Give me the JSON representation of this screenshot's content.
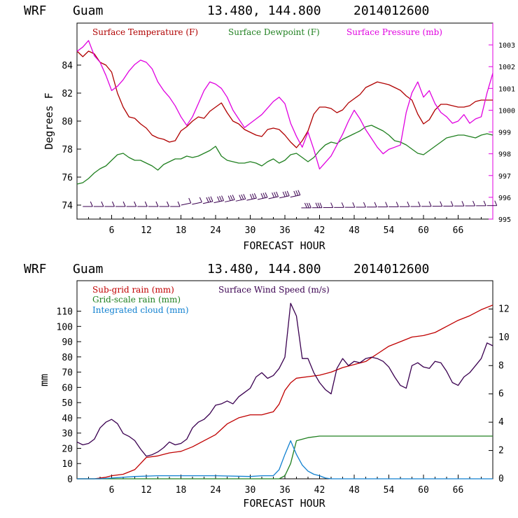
{
  "header": {
    "model": "WRF",
    "station": "Guam",
    "coords": "13.480, 144.800",
    "init": "2014012600"
  },
  "colors": {
    "temperature": "#b00000",
    "dewpoint": "#208020",
    "pressure": "#e000e0",
    "wind": "#3a0050",
    "subgrid": "#c00000",
    "gridscale": "#208020",
    "cloud": "#1080d0"
  },
  "chart_data": [
    {
      "type": "line",
      "title": "WRF Guam 13.480, 144.800 2014012600",
      "xlabel": "FORECAST HOUR",
      "ylabel": "Degrees F",
      "xlim": [
        0,
        72
      ],
      "ylim": [
        73,
        87
      ],
      "y2lim": [
        995,
        1004
      ],
      "xticks": [
        6,
        12,
        18,
        24,
        30,
        36,
        42,
        48,
        54,
        60,
        66
      ],
      "xtick_labels": [
        "6",
        "12",
        "18",
        "24",
        "30",
        "36",
        "42",
        "48",
        "54",
        "60",
        "66"
      ],
      "yticks": [
        74,
        76,
        78,
        80,
        82,
        84
      ],
      "ytick_labels": [
        "74",
        "76",
        "78",
        "80",
        "82",
        "84"
      ],
      "y2ticks": [
        995,
        996,
        997,
        998,
        999,
        1000,
        1001,
        1002,
        1003
      ],
      "y2tick_labels": [
        "995",
        "996",
        "997",
        "998",
        "999",
        "1000",
        "1001",
        "1002",
        "1003"
      ],
      "legend": [
        "Surface Temperature (F)",
        "Surface Dewpoint (F)",
        "Surface Pressure (mb)"
      ],
      "series": [
        {
          "name": "Surface Temperature (F)",
          "axis": "left",
          "x": [
            0,
            1,
            2,
            3,
            4,
            5,
            6,
            7,
            8,
            9,
            10,
            11,
            12,
            13,
            14,
            15,
            16,
            17,
            18,
            19,
            20,
            21,
            22,
            23,
            24,
            25,
            26,
            27,
            28,
            29,
            30,
            31,
            32,
            33,
            34,
            35,
            36,
            37,
            38,
            39,
            40,
            41,
            42,
            43,
            44,
            45,
            46,
            47,
            48,
            49,
            50,
            51,
            52,
            53,
            54,
            55,
            56,
            57,
            58,
            59,
            60,
            61,
            62,
            63,
            64,
            65,
            66,
            67,
            68,
            69,
            70,
            71,
            72
          ],
          "values": [
            85.0,
            84.6,
            85.0,
            84.8,
            84.2,
            84.0,
            83.5,
            82.0,
            81.0,
            80.3,
            80.2,
            79.8,
            79.5,
            79.0,
            78.8,
            78.7,
            78.5,
            78.6,
            79.3,
            79.6,
            80.0,
            80.3,
            80.2,
            80.7,
            81.0,
            81.3,
            80.6,
            80.0,
            79.8,
            79.4,
            79.2,
            79.0,
            78.9,
            79.4,
            79.5,
            79.4,
            79.0,
            78.5,
            78.1,
            78.6,
            79.3,
            80.5,
            81.0,
            81.0,
            80.9,
            80.6,
            80.8,
            81.3,
            81.6,
            81.9,
            82.4,
            82.6,
            82.8,
            82.7,
            82.6,
            82.4,
            82.2,
            81.8,
            81.5,
            80.5,
            79.8,
            80.1,
            80.8,
            81.2,
            81.2,
            81.1,
            81.0,
            81.0,
            81.1,
            81.4,
            81.5,
            81.5,
            81.5
          ]
        },
        {
          "name": "Surface Dewpoint (F)",
          "axis": "left",
          "x": [
            0,
            1,
            2,
            3,
            4,
            5,
            6,
            7,
            8,
            9,
            10,
            11,
            12,
            13,
            14,
            15,
            16,
            17,
            18,
            19,
            20,
            21,
            22,
            23,
            24,
            25,
            26,
            27,
            28,
            29,
            30,
            31,
            32,
            33,
            34,
            35,
            36,
            37,
            38,
            39,
            40,
            41,
            42,
            43,
            44,
            45,
            46,
            47,
            48,
            49,
            50,
            51,
            52,
            53,
            54,
            55,
            56,
            57,
            58,
            59,
            60,
            61,
            62,
            63,
            64,
            65,
            66,
            67,
            68,
            69,
            70,
            71,
            72
          ],
          "values": [
            75.5,
            75.6,
            75.9,
            76.3,
            76.6,
            76.8,
            77.2,
            77.6,
            77.7,
            77.4,
            77.2,
            77.2,
            77.0,
            76.8,
            76.5,
            76.9,
            77.1,
            77.3,
            77.3,
            77.5,
            77.4,
            77.5,
            77.7,
            77.9,
            78.2,
            77.5,
            77.2,
            77.1,
            77.0,
            77.0,
            77.1,
            77.0,
            76.8,
            77.1,
            77.3,
            77.0,
            77.2,
            77.6,
            77.7,
            77.4,
            77.1,
            77.4,
            77.9,
            78.3,
            78.5,
            78.4,
            78.7,
            78.9,
            79.1,
            79.3,
            79.6,
            79.7,
            79.5,
            79.3,
            79.0,
            78.6,
            78.5,
            78.3,
            78.0,
            77.7,
            77.6,
            77.9,
            78.2,
            78.5,
            78.8,
            78.9,
            79.0,
            79.0,
            78.9,
            78.8,
            79.0,
            79.1,
            79.0
          ]
        },
        {
          "name": "Surface Pressure (mb)",
          "axis": "right",
          "x": [
            0,
            1,
            2,
            3,
            4,
            5,
            6,
            7,
            8,
            9,
            10,
            11,
            12,
            13,
            14,
            15,
            16,
            17,
            18,
            19,
            20,
            21,
            22,
            23,
            24,
            25,
            26,
            27,
            28,
            29,
            30,
            31,
            32,
            33,
            34,
            35,
            36,
            37,
            38,
            39,
            40,
            41,
            42,
            43,
            44,
            45,
            46,
            47,
            48,
            49,
            50,
            51,
            52,
            53,
            54,
            55,
            56,
            57,
            58,
            59,
            60,
            61,
            62,
            63,
            64,
            65,
            66,
            67,
            68,
            69,
            70,
            71,
            72
          ],
          "values": [
            1002.7,
            1002.9,
            1003.2,
            1002.5,
            1002.2,
            1001.6,
            1000.9,
            1001.1,
            1001.4,
            1001.8,
            1002.1,
            1002.3,
            1002.2,
            1001.9,
            1001.3,
            1000.9,
            1000.6,
            1000.2,
            999.7,
            999.3,
            999.7,
            1000.3,
            1000.9,
            1001.3,
            1001.2,
            1001.0,
            1000.6,
            1000.0,
            999.6,
            999.2,
            999.4,
            999.6,
            999.8,
            1000.1,
            1000.4,
            1000.6,
            1000.3,
            999.4,
            998.8,
            998.3,
            999.0,
            998.2,
            997.3,
            997.6,
            997.9,
            998.4,
            998.9,
            999.5,
            1000.0,
            999.6,
            999.1,
            998.7,
            998.3,
            998.0,
            998.2,
            998.3,
            998.4,
            999.9,
            1000.8,
            1001.3,
            1000.6,
            1000.9,
            1000.3,
            999.9,
            999.7,
            999.4,
            999.5,
            999.8,
            999.4,
            999.6,
            999.7,
            1000.8,
            1001.7
          ]
        }
      ],
      "wind_barbs": {
        "rows": "surface wind barbs",
        "count": 38
      }
    },
    {
      "type": "line",
      "title": "WRF Guam 13.480, 144.800 2014012600",
      "xlabel": "FORECAST HOUR",
      "ylabel": "mm",
      "xlim": [
        0,
        72
      ],
      "ylim": [
        0,
        130
      ],
      "y2lim": [
        0,
        14
      ],
      "xticks": [
        6,
        12,
        18,
        24,
        30,
        36,
        42,
        48,
        54,
        60,
        66
      ],
      "xtick_labels": [
        "6",
        "12",
        "18",
        "24",
        "30",
        "36",
        "42",
        "48",
        "54",
        "60",
        "66"
      ],
      "yticks": [
        0,
        10,
        20,
        30,
        40,
        50,
        60,
        70,
        80,
        90,
        100,
        110
      ],
      "ytick_labels": [
        "0",
        "10",
        "20",
        "30",
        "40",
        "50",
        "60",
        "70",
        "80",
        "90",
        "100",
        "110"
      ],
      "y2ticks": [
        0,
        2,
        4,
        6,
        8,
        10,
        12
      ],
      "y2tick_labels": [
        "0",
        "2",
        "4",
        "6",
        "8",
        "10",
        "12"
      ],
      "legend": [
        "Sub-grid rain (mm)",
        "Surface Wind Speed (m/s)",
        "Grid-scale rain (mm)",
        "Integrated cloud (mm)"
      ],
      "series": [
        {
          "name": "Sub-grid rain (mm)",
          "axis": "left",
          "x": [
            0,
            3,
            5,
            6,
            8,
            10,
            11,
            12,
            14,
            16,
            18,
            20,
            22,
            24,
            26,
            28,
            30,
            32,
            34,
            35,
            36,
            37,
            38,
            40,
            42,
            44,
            46,
            48,
            50,
            52,
            54,
            56,
            58,
            60,
            62,
            64,
            66,
            68,
            70,
            72
          ],
          "values": [
            0,
            0,
            1,
            2,
            3,
            6,
            10,
            14,
            15,
            17,
            18,
            21,
            25,
            29,
            36,
            40,
            42,
            42,
            44,
            49,
            58,
            63,
            66,
            67,
            68,
            70,
            73,
            75,
            77,
            82,
            87,
            90,
            93,
            94,
            96,
            100,
            104,
            107,
            111,
            114
          ]
        },
        {
          "name": "Surface Wind Speed (m/s)",
          "axis": "right",
          "x": [
            0,
            1,
            2,
            3,
            4,
            5,
            6,
            7,
            8,
            9,
            10,
            11,
            12,
            13,
            14,
            15,
            16,
            17,
            18,
            19,
            20,
            21,
            22,
            23,
            24,
            25,
            26,
            27,
            28,
            29,
            30,
            31,
            32,
            33,
            34,
            35,
            36,
            37,
            38,
            39,
            40,
            41,
            42,
            43,
            44,
            45,
            46,
            47,
            48,
            49,
            50,
            51,
            52,
            53,
            54,
            55,
            56,
            57,
            58,
            59,
            60,
            61,
            62,
            63,
            64,
            65,
            66,
            67,
            68,
            69,
            70,
            71,
            72
          ],
          "values": [
            2.6,
            2.4,
            2.5,
            2.8,
            3.6,
            4.0,
            4.2,
            3.9,
            3.2,
            3.0,
            2.7,
            2.1,
            1.6,
            1.7,
            1.9,
            2.2,
            2.6,
            2.4,
            2.5,
            2.8,
            3.6,
            4.0,
            4.2,
            4.6,
            5.2,
            5.3,
            5.5,
            5.3,
            5.8,
            6.1,
            6.4,
            7.2,
            7.5,
            7.1,
            7.3,
            7.8,
            8.6,
            12.4,
            11.5,
            8.5,
            8.5,
            7.5,
            6.8,
            6.3,
            6.0,
            7.8,
            8.5,
            8.0,
            8.3,
            8.2,
            8.5,
            8.6,
            8.5,
            8.3,
            7.9,
            7.2,
            6.6,
            6.4,
            8.0,
            8.2,
            7.9,
            7.8,
            8.3,
            8.2,
            7.6,
            6.8,
            6.6,
            7.2,
            7.5,
            8.0,
            8.5,
            9.6,
            9.4
          ]
        },
        {
          "name": "Grid-scale rain (mm)",
          "axis": "left",
          "x": [
            0,
            30,
            35,
            36,
            37,
            38,
            40,
            42,
            44,
            48,
            72
          ],
          "values": [
            0,
            0,
            0,
            2,
            10,
            25,
            27,
            28,
            28,
            28,
            28
          ]
        },
        {
          "name": "Integrated cloud (mm)",
          "axis": "left",
          "x": [
            0,
            4,
            6,
            10,
            14,
            18,
            24,
            30,
            32,
            34,
            35,
            36,
            37,
            38,
            39,
            40,
            41,
            42,
            43,
            44,
            46,
            72
          ],
          "values": [
            0,
            0,
            0.5,
            1.5,
            2,
            2,
            2,
            1.5,
            2,
            2,
            6,
            16,
            25,
            16,
            9,
            5,
            3,
            2,
            0.5,
            0,
            0,
            0
          ]
        }
      ]
    }
  ]
}
